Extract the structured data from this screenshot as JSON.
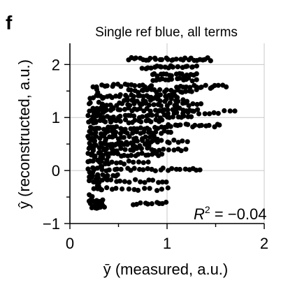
{
  "panel_label": "f",
  "chart_data": {
    "type": "scatter",
    "title": "Single ref blue, all terms",
    "xlabel": "ȳ (measured, a.u.)",
    "ylabel": "ŷ (reconstructed, a.u.)",
    "xlim": [
      0,
      2
    ],
    "ylim": [
      -1,
      2.4
    ],
    "xticks": [
      0,
      1,
      2
    ],
    "yticks": [
      -1,
      0,
      1,
      2
    ],
    "xtick_labels": [
      "0",
      "1",
      "2"
    ],
    "ytick_labels": [
      "−1",
      "0",
      "1",
      "2"
    ],
    "grid": true,
    "annotation": {
      "prefix": "R",
      "superscript": "2",
      "suffix": " = −0.04"
    },
    "marker_color": "#000000",
    "grid_color": "#c8c8c8",
    "bands": [
      {
        "y": 2.1,
        "x_min": 0.6,
        "x_max": 1.45,
        "n": 30
      },
      {
        "y": 1.95,
        "x_min": 0.75,
        "x_max": 1.3,
        "n": 20
      },
      {
        "y": 1.8,
        "x_min": 0.85,
        "x_max": 1.3,
        "n": 16
      },
      {
        "y": 1.72,
        "x_min": 0.85,
        "x_max": 1.3,
        "n": 14
      },
      {
        "y": 1.6,
        "x_min": 0.25,
        "x_max": 0.85,
        "n": 18
      },
      {
        "y": 1.58,
        "x_min": 1.1,
        "x_max": 1.6,
        "n": 16
      },
      {
        "y": 1.5,
        "x_min": 0.6,
        "x_max": 1.3,
        "n": 22
      },
      {
        "y": 1.4,
        "x_min": 0.25,
        "x_max": 1.1,
        "n": 28
      },
      {
        "y": 1.33,
        "x_min": 0.55,
        "x_max": 1.2,
        "n": 18
      },
      {
        "y": 1.25,
        "x_min": 0.35,
        "x_max": 1.35,
        "n": 26
      },
      {
        "y": 1.15,
        "x_min": 0.2,
        "x_max": 1.3,
        "n": 32
      },
      {
        "y": 1.1,
        "x_min": 0.9,
        "x_max": 1.7,
        "n": 16
      },
      {
        "y": 1.02,
        "x_min": 0.2,
        "x_max": 1.25,
        "n": 30
      },
      {
        "y": 0.93,
        "x_min": 0.2,
        "x_max": 0.95,
        "n": 22
      },
      {
        "y": 0.85,
        "x_min": 1.0,
        "x_max": 1.55,
        "n": 16
      },
      {
        "y": 0.8,
        "x_min": 0.2,
        "x_max": 1.0,
        "n": 24
      },
      {
        "y": 0.72,
        "x_min": 0.2,
        "x_max": 1.05,
        "n": 22
      },
      {
        "y": 0.62,
        "x_min": 0.2,
        "x_max": 0.9,
        "n": 18
      },
      {
        "y": 0.55,
        "x_min": 0.5,
        "x_max": 1.2,
        "n": 18
      },
      {
        "y": 0.48,
        "x_min": 0.2,
        "x_max": 0.8,
        "n": 16
      },
      {
        "y": 0.4,
        "x_min": 0.25,
        "x_max": 1.2,
        "n": 22
      },
      {
        "y": 0.3,
        "x_min": 0.2,
        "x_max": 0.95,
        "n": 22
      },
      {
        "y": 0.15,
        "x_min": 0.2,
        "x_max": 0.8,
        "n": 14
      },
      {
        "y": 0.02,
        "x_min": 0.2,
        "x_max": 1.35,
        "n": 28
      },
      {
        "y": -0.1,
        "x_min": 0.2,
        "x_max": 0.5,
        "n": 10
      },
      {
        "y": -0.2,
        "x_min": 0.2,
        "x_max": 1.0,
        "n": 18
      },
      {
        "y": -0.35,
        "x_min": 0.25,
        "x_max": 1.0,
        "n": 14
      },
      {
        "y": -0.62,
        "x_min": 0.65,
        "x_max": 1.0,
        "n": 10
      },
      {
        "y": -0.68,
        "x_min": 0.25,
        "x_max": 0.35,
        "n": 5
      }
    ],
    "columns": [
      {
        "x": 0.22,
        "y_min": -0.72,
        "y_max": 1.45,
        "n": 30
      },
      {
        "x": 0.27,
        "y_min": -0.72,
        "y_max": 1.6,
        "n": 30
      },
      {
        "x": 0.32,
        "y_min": -0.65,
        "y_max": 1.4,
        "n": 26
      },
      {
        "x": 0.37,
        "y_min": -0.3,
        "y_max": 1.2,
        "n": 18
      },
      {
        "x": 0.44,
        "y_min": 0.3,
        "y_max": 1.3,
        "n": 12
      }
    ]
  }
}
